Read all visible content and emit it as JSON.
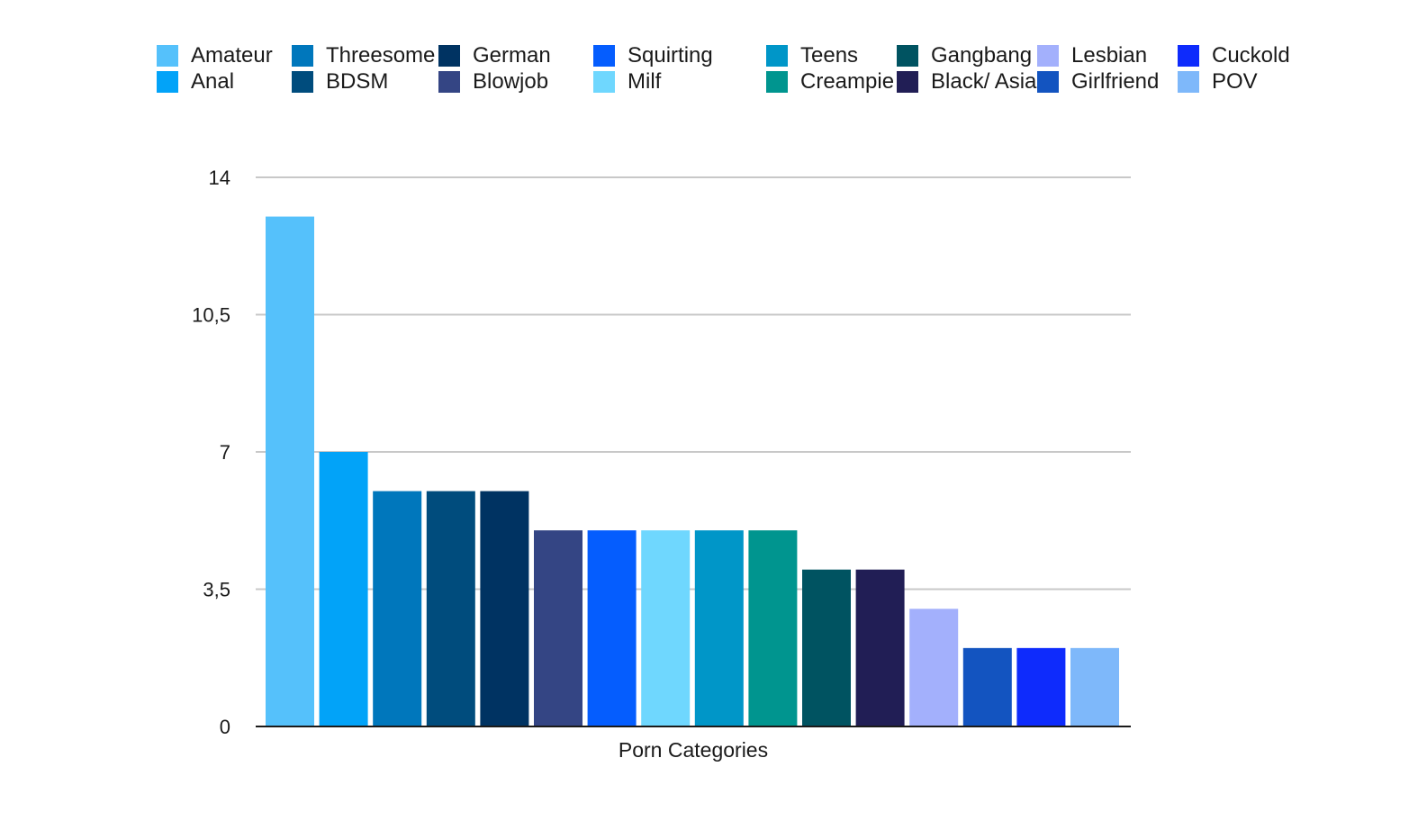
{
  "chart_data": {
    "type": "bar",
    "title": "",
    "xlabel": "Porn Categories",
    "ylabel": "",
    "ylim": [
      0,
      14
    ],
    "yticks": [
      0,
      3.5,
      7,
      10.5,
      14
    ],
    "ytick_labels": [
      "0",
      "3,5",
      "7",
      "10,5",
      "14"
    ],
    "grid": true,
    "legend_position": "top",
    "series": [
      {
        "name": "Amateur",
        "value": 13,
        "color": "#55C1FB"
      },
      {
        "name": "Anal",
        "value": 7,
        "color": "#02A3F8"
      },
      {
        "name": "Threesome",
        "value": 6,
        "color": "#0077BC"
      },
      {
        "name": "BDSM",
        "value": 6,
        "color": "#004C7D"
      },
      {
        "name": "German",
        "value": 6,
        "color": "#003362"
      },
      {
        "name": "Blowjob",
        "value": 5,
        "color": "#344584"
      },
      {
        "name": "Squirting",
        "value": 5,
        "color": "#055DFE"
      },
      {
        "name": "Milf",
        "value": 5,
        "color": "#6FD7FE"
      },
      {
        "name": "Teens",
        "value": 5,
        "color": "#0096C8"
      },
      {
        "name": "Creampie",
        "value": 5,
        "color": "#00958F"
      },
      {
        "name": "Gangbang",
        "value": 4,
        "color": "#005361"
      },
      {
        "name": "Black/ Asian",
        "value": 4,
        "color": "#211E55"
      },
      {
        "name": "Lesbian",
        "value": 3,
        "color": "#A3B0FC"
      },
      {
        "name": "Girlfriend",
        "value": 2,
        "color": "#1354C0"
      },
      {
        "name": "Cuckold",
        "value": 2,
        "color": "#0E2BFC"
      },
      {
        "name": "POV",
        "value": 2,
        "color": "#7EB8FA"
      }
    ]
  }
}
